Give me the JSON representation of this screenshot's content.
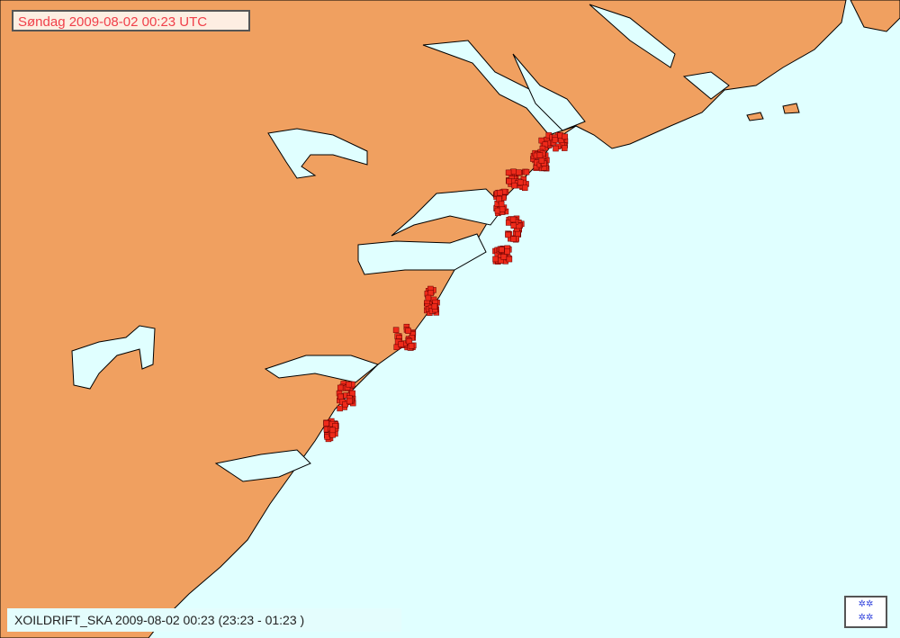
{
  "map": {
    "title": "Søndag 2009-08-02 00:23 UTC",
    "caption": "XOILDRIFT_SKA 2009-08-02 00:23 (23:23 - 01:23 )",
    "colors": {
      "land": "#f0a060",
      "sea": "#e0ffff",
      "oil": "#ee2a1a",
      "coast": "#000000",
      "title_text": "#f0404a"
    },
    "logo_icon": "met-logo-icon"
  }
}
